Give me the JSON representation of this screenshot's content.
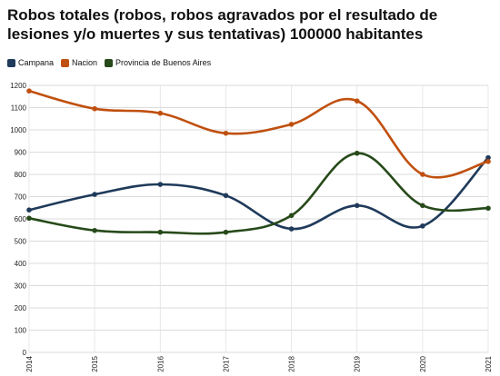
{
  "chart_data": {
    "type": "line",
    "title": "Robos totales (robos, robos agravados por el resultado de lesiones y/o muertes y sus tentativas) 100000 habitantes",
    "xlabel": "",
    "ylabel": "",
    "x": [
      "2014",
      "2015",
      "2016",
      "2017",
      "2018",
      "2019",
      "2020",
      "2021"
    ],
    "ylim": [
      0,
      1200
    ],
    "yticks": [
      0,
      100,
      200,
      300,
      400,
      500,
      600,
      700,
      800,
      900,
      1000,
      1100,
      1200
    ],
    "grid": true,
    "legend_position": "top-left",
    "series": [
      {
        "name": "Campana",
        "color": "#1f3a5a",
        "values": [
          640,
          710,
          755,
          705,
          555,
          660,
          568,
          875
        ]
      },
      {
        "name": "Nacion",
        "color": "#c0500f",
        "values": [
          1175,
          1095,
          1075,
          985,
          1025,
          1130,
          800,
          858
        ]
      },
      {
        "name": "Provincia de Buenos Aires",
        "color": "#274a1a",
        "values": [
          603,
          548,
          540,
          540,
          615,
          895,
          660,
          648
        ]
      }
    ]
  }
}
